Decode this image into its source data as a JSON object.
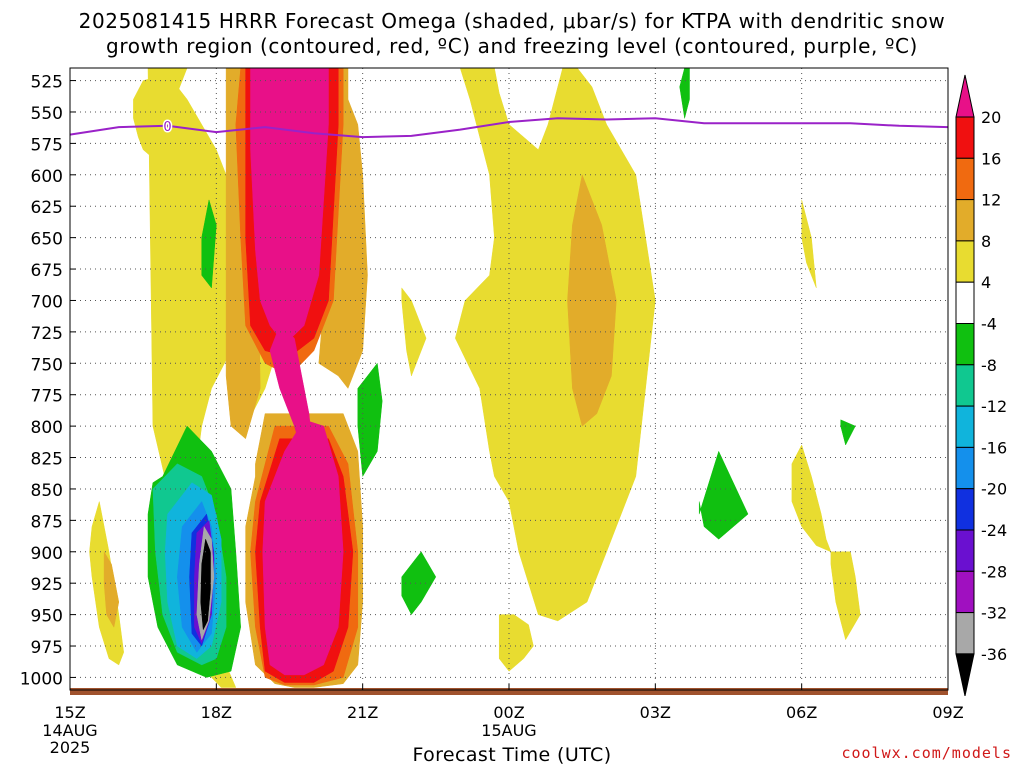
{
  "title_line1": "2025081415 HRRR Forecast Omega (shaded, μbar/s) for KTPA with dendritic snow",
  "title_line2": "growth region (contoured, red, ºC) and freezing level (contoured, purple, ºC)",
  "xaxis_title": "Forecast Time (UTC)",
  "credit": "coolwx.com/models",
  "colors": {
    "freezing_line": "#9a22c8",
    "ground": "#a0522d",
    "grid": "#555555"
  },
  "chart_data": {
    "type": "heatmap",
    "x_ticks": [
      {
        "label": "15Z",
        "sub": [
          "14AUG",
          "2025"
        ],
        "hour": 0
      },
      {
        "label": "18Z",
        "sub": [],
        "hour": 3
      },
      {
        "label": "21Z",
        "sub": [],
        "hour": 6
      },
      {
        "label": "00Z",
        "sub": [
          "15AUG"
        ],
        "hour": 9
      },
      {
        "label": "03Z",
        "sub": [],
        "hour": 12
      },
      {
        "label": "06Z",
        "sub": [],
        "hour": 15
      },
      {
        "label": "09Z",
        "sub": [],
        "hour": 18
      }
    ],
    "xlim": [
      0,
      18
    ],
    "y_ticks": [
      "525",
      "550",
      "575",
      "600",
      "625",
      "650",
      "675",
      "700",
      "725",
      "750",
      "775",
      "800",
      "825",
      "850",
      "875",
      "900",
      "925",
      "950",
      "975",
      "1000"
    ],
    "ylim": [
      1010,
      515
    ],
    "colorbar": {
      "levels": [
        {
          "label": "20",
          "color": "#f01010"
        },
        {
          "label": "16",
          "color": "#f06a10"
        },
        {
          "label": "12",
          "color": "#e2ac2a"
        },
        {
          "label": "8",
          "color": "#e8dc30"
        },
        {
          "label": "4",
          "color": "#ffffff"
        },
        {
          "label": "-4",
          "color": "#10c010"
        },
        {
          "label": "-8",
          "color": "#10c890"
        },
        {
          "label": "-12",
          "color": "#10b4dc"
        },
        {
          "label": "-16",
          "color": "#1490ec"
        },
        {
          "label": "-20",
          "color": "#1030e0"
        },
        {
          "label": "-24",
          "color": "#6a10d0"
        },
        {
          "label": "-28",
          "color": "#a010c0"
        },
        {
          "label": "-32",
          "color": "#a8a8a8"
        },
        {
          "label": "-36",
          "color": "#000000"
        }
      ],
      "top_color": "#e81088",
      "bottom_color": "#000000"
    },
    "freezing_level": {
      "label": "0",
      "hours": [
        0,
        1,
        2,
        3,
        4,
        5,
        6,
        7,
        8,
        9,
        10,
        11,
        12,
        13,
        14,
        15,
        16,
        17,
        18
      ],
      "pressure": [
        568,
        562,
        561,
        566,
        562,
        567,
        570,
        569,
        564,
        558,
        555,
        556,
        555,
        559,
        559,
        559,
        559,
        561,
        562
      ]
    },
    "omega_regions": [
      {
        "color": "#e8dc30",
        "hours": [
          1.6,
          2.4,
          2.2,
          2.3,
          1.8,
          1.5,
          1.4,
          1.3,
          1.3,
          1.5,
          2.0,
          2.4,
          3.0,
          3.4,
          3.6,
          3.6,
          3.3,
          2.9,
          2.7,
          2.6,
          2.5,
          2.6,
          3.0,
          3.2,
          3.4,
          3.1,
          2.9,
          2.8,
          2.7,
          2.4,
          2.2,
          2.0,
          1.7,
          1.6
        ],
        "pressure": [
          515,
          515,
          535,
          580,
          590,
          580,
          570,
          555,
          540,
          525,
          520,
          540,
          580,
          620,
          680,
          720,
          740,
          770,
          800,
          830,
          860,
          900,
          960,
          990,
          1008,
          1008,
          1000,
          990,
          970,
          950,
          900,
          850,
          800,
          515
        ]
      },
      {
        "color": "#e8dc30",
        "hours": [
          3.6,
          4.0,
          4.6,
          5.6,
          6.0,
          7.0,
          8.0,
          8.2,
          8.6,
          8.7,
          8.6,
          8.1,
          7.9,
          8.4,
          8.6,
          8.7,
          9.0,
          9.2,
          9.6,
          10.0,
          10.6,
          11.0,
          11.6,
          12.0,
          11.6,
          11.0,
          10.7,
          10.4,
          10.3,
          10.1,
          9.8,
          9.6,
          9.0,
          8.8,
          8.7,
          8.4,
          8.0,
          7.5,
          7.2,
          6.6,
          6.1,
          5.8,
          5.4,
          5.0,
          4.9,
          4.7,
          4.4,
          4.0,
          3.6,
          3.6,
          3.7,
          3.6
        ],
        "pressure": [
          515,
          515,
          515,
          515,
          515,
          515,
          515,
          540,
          600,
          650,
          680,
          700,
          730,
          770,
          820,
          840,
          860,
          900,
          950,
          955,
          940,
          900,
          840,
          700,
          600,
          560,
          530,
          515,
          515,
          515,
          560,
          580,
          560,
          535,
          515,
          515,
          515,
          515,
          515,
          515,
          515,
          515,
          515,
          515,
          640,
          680,
          720,
          770,
          800,
          760,
          700,
          620
        ]
      },
      {
        "color": "#e8dc30",
        "hours": [
          0.45,
          0.6,
          0.8,
          1.0,
          1.1,
          1.0,
          0.8,
          0.6,
          0.45,
          0.4
        ],
        "pressure": [
          880,
          860,
          900,
          950,
          980,
          990,
          985,
          960,
          920,
          900
        ]
      },
      {
        "color": "#e8dc30",
        "hours": [
          8.8,
          9.1,
          9.4,
          9.5,
          9.3,
          9.0,
          8.8
        ],
        "pressure": [
          950,
          950,
          958,
          975,
          985,
          995,
          985
        ]
      },
      {
        "color": "#e8dc30",
        "hours": [
          6.8,
          7.0,
          7.3,
          7.0,
          6.9,
          6.8
        ],
        "pressure": [
          690,
          700,
          730,
          760,
          740,
          700
        ]
      },
      {
        "color": "#e8dc30",
        "hours": [
          15.0,
          15.2,
          15.3,
          15.1,
          15.0
        ],
        "pressure": [
          620,
          650,
          690,
          670,
          650
        ]
      },
      {
        "color": "#e8dc30",
        "hours": [
          14.8,
          15.0,
          15.2,
          15.4,
          15.5,
          15.6,
          15.3,
          15.0,
          14.8
        ],
        "pressure": [
          830,
          815,
          840,
          870,
          890,
          900,
          895,
          880,
          860
        ]
      },
      {
        "color": "#e8dc30",
        "hours": [
          15.6,
          16.0,
          16.1,
          16.2,
          15.9,
          15.7,
          15.6
        ],
        "pressure": [
          900,
          900,
          920,
          950,
          970,
          940,
          910
        ]
      },
      {
        "color": "#e2ac2a",
        "hours": [
          0.7,
          0.85,
          1.0,
          0.9,
          0.75,
          0.7
        ],
        "pressure": [
          900,
          910,
          940,
          960,
          950,
          925
        ]
      },
      {
        "color": "#e2ac2a",
        "hours": [
          10.3,
          10.5,
          10.9,
          11.2,
          11.1,
          10.8,
          10.5,
          10.3,
          10.2
        ],
        "pressure": [
          640,
          600,
          640,
          700,
          760,
          790,
          800,
          770,
          700
        ]
      },
      {
        "color": "#e2ac2a",
        "hours": [
          3.2,
          3.4,
          3.8,
          3.9,
          3.6,
          3.3,
          3.2
        ],
        "pressure": [
          515,
          515,
          515,
          770,
          810,
          800,
          760
        ]
      },
      {
        "color": "#e2ac2a",
        "hours": [
          5.6,
          5.7,
          5.7,
          5.9,
          6.0,
          6.1,
          6.0,
          5.7,
          5.5,
          5.1
        ],
        "pressure": [
          515,
          515,
          540,
          560,
          600,
          680,
          740,
          770,
          760,
          750
        ]
      },
      {
        "color": "#e2ac2a",
        "hours": [
          3.8,
          4.0,
          4.5,
          5.0,
          5.6,
          5.9,
          6.0,
          6.0,
          5.9,
          5.6,
          5.0,
          4.6,
          4.2,
          3.8,
          3.6,
          3.6,
          3.8
        ],
        "pressure": [
          830,
          790,
          790,
          790,
          790,
          820,
          880,
          940,
          990,
          1005,
          1008,
          1008,
          1005,
          990,
          940,
          880,
          840
        ]
      },
      {
        "color": "#f06a10",
        "hours": [
          3.5,
          5.6,
          5.6,
          5.4,
          5.0,
          4.5,
          4.0,
          3.6,
          3.5,
          3.4
        ],
        "pressure": [
          515,
          515,
          560,
          700,
          740,
          760,
          750,
          720,
          650,
          560
        ]
      },
      {
        "color": "#f06a10",
        "hours": [
          3.8,
          4.2,
          4.8,
          5.3,
          5.7,
          5.9,
          5.9,
          5.6,
          5.0,
          4.4,
          4.0,
          3.8,
          3.7
        ],
        "pressure": [
          860,
          800,
          800,
          800,
          830,
          900,
          960,
          1000,
          1006,
          1006,
          1000,
          960,
          900
        ]
      },
      {
        "color": "#f01010",
        "hours": [
          3.6,
          5.5,
          5.5,
          5.3,
          5.0,
          4.5,
          4.0,
          3.7,
          3.6
        ],
        "pressure": [
          515,
          515,
          560,
          700,
          730,
          745,
          740,
          720,
          650
        ]
      },
      {
        "color": "#f01010",
        "hours": [
          3.9,
          4.3,
          4.8,
          5.3,
          5.6,
          5.8,
          5.7,
          5.4,
          5.0,
          4.4,
          4.0,
          3.9,
          3.8
        ],
        "pressure": [
          860,
          810,
          810,
          810,
          840,
          900,
          960,
          995,
          1004,
          1004,
          995,
          960,
          900
        ]
      },
      {
        "color": "#e81088",
        "hours": [
          3.7,
          5.3,
          5.3,
          5.1,
          4.8,
          4.4,
          4.1,
          3.9,
          3.8,
          3.7
        ],
        "pressure": [
          515,
          515,
          560,
          680,
          720,
          735,
          720,
          700,
          660,
          580
        ]
      },
      {
        "color": "#e81088",
        "hours": [
          4.0,
          4.4,
          4.8,
          5.2,
          5.5,
          5.6,
          5.5,
          5.2,
          4.8,
          4.4,
          4.1,
          4.0,
          3.95
        ],
        "pressure": [
          860,
          820,
          795,
          800,
          840,
          900,
          960,
          990,
          998,
          998,
          990,
          960,
          900
        ]
      },
      {
        "color": "#e81088",
        "hours": [
          4.3,
          4.6,
          4.9,
          5.0,
          4.9,
          4.6,
          4.3,
          4.1
        ],
        "pressure": [
          720,
          730,
          790,
          830,
          840,
          800,
          770,
          740
        ]
      },
      {
        "color": "#10c010",
        "hours": [
          1.9,
          2.4,
          2.9,
          3.3,
          3.4,
          3.5,
          3.3,
          2.8,
          2.2,
          1.8,
          1.6,
          1.6,
          1.7
        ],
        "pressure": [
          840,
          800,
          820,
          850,
          900,
          960,
          995,
          1000,
          990,
          960,
          920,
          870,
          845
        ]
      },
      {
        "color": "#10c010",
        "hours": [
          2.7,
          2.85,
          3.0,
          2.9,
          2.7
        ],
        "pressure": [
          650,
          620,
          640,
          690,
          680
        ]
      },
      {
        "color": "#10c010",
        "hours": [
          5.9,
          6.3,
          6.4,
          6.3,
          6.0,
          5.9
        ],
        "pressure": [
          770,
          750,
          780,
          820,
          840,
          800
        ]
      },
      {
        "color": "#10c010",
        "hours": [
          6.8,
          7.2,
          7.5,
          7.2,
          7.0,
          6.8
        ],
        "pressure": [
          920,
          900,
          920,
          940,
          950,
          935
        ]
      },
      {
        "color": "#10c010",
        "hours": [
          12.6,
          12.7,
          12.7,
          12.6,
          12.5
        ],
        "pressure": [
          515,
          515,
          540,
          555,
          530
        ]
      },
      {
        "color": "#10c010",
        "hours": [
          12.9,
          13.3,
          13.9,
          13.3,
          13.0,
          12.9
        ],
        "pressure": [
          870,
          820,
          870,
          890,
          880,
          860
        ]
      },
      {
        "color": "#10c010",
        "hours": [
          15.8,
          16.1,
          15.9,
          15.8
        ],
        "pressure": [
          795,
          800,
          815,
          800
        ]
      },
      {
        "color": "#10c890",
        "hours": [
          1.7,
          2.2,
          2.7,
          3.0,
          3.2,
          3.2,
          3.0,
          2.7,
          2.2,
          1.9,
          1.75
        ],
        "pressure": [
          850,
          830,
          840,
          870,
          920,
          960,
          985,
          990,
          980,
          950,
          900
        ]
      },
      {
        "color": "#10b4dc",
        "hours": [
          2.0,
          2.5,
          2.9,
          3.1,
          3.1,
          2.9,
          2.6,
          2.2,
          2.0,
          1.95
        ],
        "pressure": [
          870,
          845,
          855,
          890,
          940,
          975,
          985,
          975,
          940,
          900
        ]
      },
      {
        "color": "#1490ec",
        "hours": [
          2.3,
          2.7,
          2.9,
          3.0,
          2.9,
          2.6,
          2.3,
          2.2
        ],
        "pressure": [
          880,
          860,
          880,
          920,
          965,
          980,
          960,
          920
        ]
      },
      {
        "color": "#1030e0",
        "hours": [
          2.5,
          2.8,
          2.95,
          2.9,
          2.7,
          2.5,
          2.45
        ],
        "pressure": [
          885,
          870,
          900,
          950,
          975,
          965,
          920
        ]
      },
      {
        "color": "#6a10d0",
        "hours": [
          2.6,
          2.85,
          2.95,
          2.9,
          2.7,
          2.55,
          2.55
        ],
        "pressure": [
          885,
          875,
          905,
          950,
          973,
          960,
          920
        ]
      },
      {
        "color": "#a8a8a8",
        "hours": [
          2.75,
          2.9,
          2.95,
          2.85,
          2.7,
          2.6,
          2.65
        ],
        "pressure": [
          880,
          890,
          920,
          955,
          970,
          950,
          910
        ]
      },
      {
        "color": "#000000",
        "hours": [
          2.78,
          2.88,
          2.88,
          2.82,
          2.73,
          2.68,
          2.7
        ],
        "pressure": [
          890,
          900,
          930,
          955,
          962,
          940,
          910
        ]
      }
    ]
  }
}
